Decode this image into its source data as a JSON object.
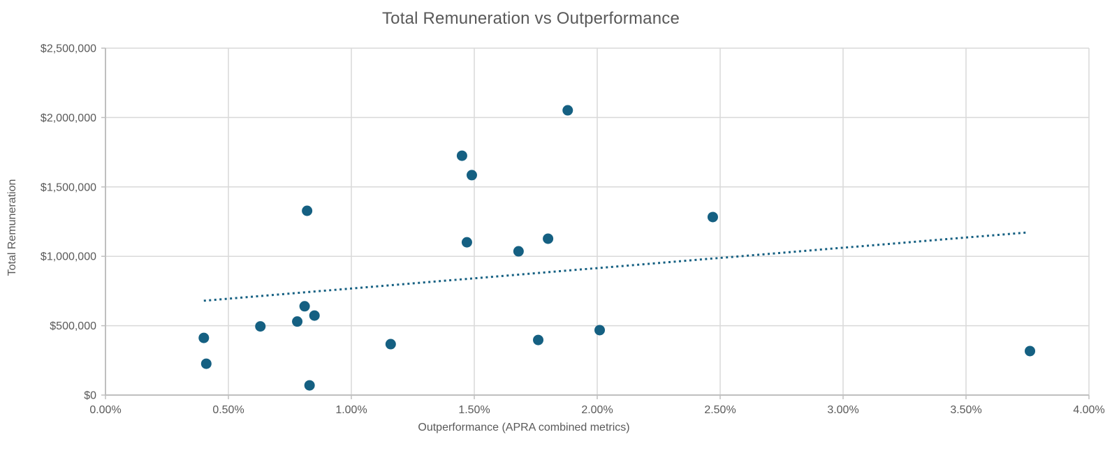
{
  "chart_data": {
    "type": "scatter",
    "title": "Total Remuneration vs Outperformance",
    "xlabel": "Outperformance (APRA combined metrics)",
    "ylabel": "Total Remuneration",
    "xlim": [
      0,
      4
    ],
    "ylim": [
      0,
      2500000
    ],
    "grid": true,
    "legend": "none",
    "x_ticks": [
      {
        "v": 0.0,
        "label": "0.00%"
      },
      {
        "v": 0.5,
        "label": "0.50%"
      },
      {
        "v": 1.0,
        "label": "1.00%"
      },
      {
        "v": 1.5,
        "label": "1.50%"
      },
      {
        "v": 2.0,
        "label": "2.00%"
      },
      {
        "v": 2.5,
        "label": "2.50%"
      },
      {
        "v": 3.0,
        "label": "3.00%"
      },
      {
        "v": 3.5,
        "label": "3.50%"
      },
      {
        "v": 4.0,
        "label": "4.00%"
      }
    ],
    "y_ticks": [
      {
        "v": 0,
        "label": "$0"
      },
      {
        "v": 500000,
        "label": "$500,000"
      },
      {
        "v": 1000000,
        "label": "$1,000,000"
      },
      {
        "v": 1500000,
        "label": "$1,500,000"
      },
      {
        "v": 2000000,
        "label": "$2,000,000"
      },
      {
        "v": 2500000,
        "label": "$2,500,000"
      }
    ],
    "points": [
      {
        "x": 0.4,
        "y": 412000
      },
      {
        "x": 0.41,
        "y": 226000
      },
      {
        "x": 0.63,
        "y": 495000
      },
      {
        "x": 0.78,
        "y": 530000
      },
      {
        "x": 0.81,
        "y": 640000
      },
      {
        "x": 0.85,
        "y": 573000
      },
      {
        "x": 0.83,
        "y": 70000
      },
      {
        "x": 0.82,
        "y": 1328000
      },
      {
        "x": 1.16,
        "y": 367000
      },
      {
        "x": 1.45,
        "y": 1725000
      },
      {
        "x": 1.47,
        "y": 1101000
      },
      {
        "x": 1.49,
        "y": 1585000
      },
      {
        "x": 1.68,
        "y": 1036000
      },
      {
        "x": 1.76,
        "y": 397000
      },
      {
        "x": 1.8,
        "y": 1127000
      },
      {
        "x": 1.88,
        "y": 2052000
      },
      {
        "x": 2.01,
        "y": 468000
      },
      {
        "x": 2.47,
        "y": 1283000
      },
      {
        "x": 3.76,
        "y": 317000
      }
    ],
    "trendline": {
      "style": "dotted",
      "x1": 0.4,
      "y1": 680000,
      "x2": 3.75,
      "y2": 1172000
    },
    "colors": {
      "point": "#156082",
      "trendline": "#156082",
      "gridline": "#d9d9d9",
      "axis": "#bfbfbf",
      "text": "#595959"
    }
  }
}
